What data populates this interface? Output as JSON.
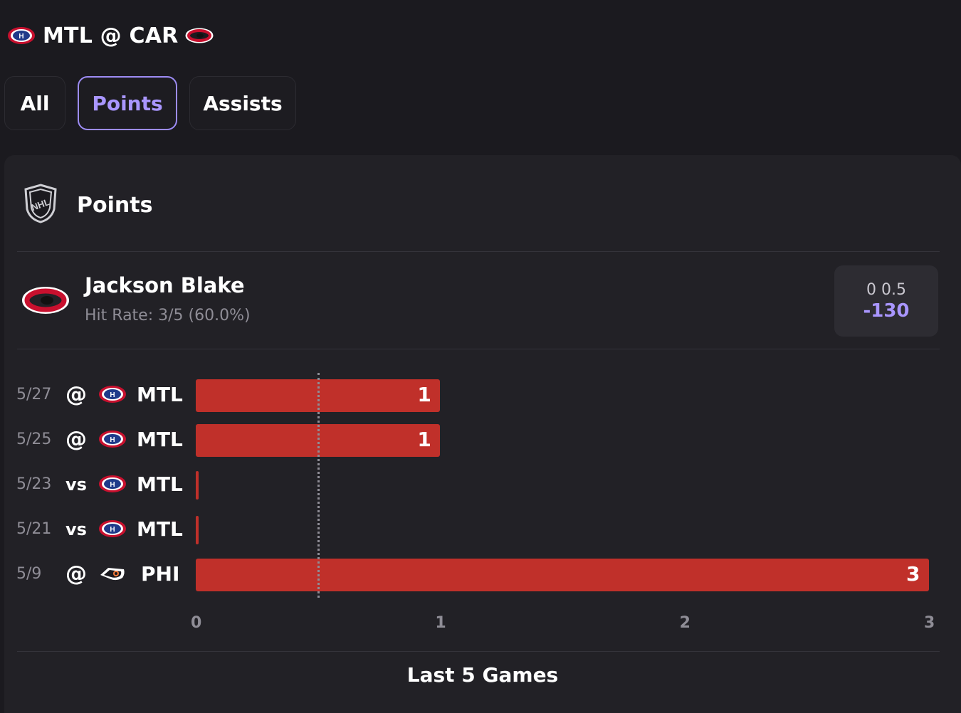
{
  "header": {
    "title": "MTL @ CAR"
  },
  "tabs": [
    {
      "label": "All",
      "active": false
    },
    {
      "label": "Points",
      "active": true
    },
    {
      "label": "Assists",
      "active": false
    }
  ],
  "section": {
    "title": "Points"
  },
  "player": {
    "name": "Jackson Blake",
    "hit_rate": "Hit Rate: 3/5 (60.0%)",
    "line": "0 0.5",
    "odds": "-130"
  },
  "colors": {
    "bar": "#c0302a",
    "accent": "#a996ff"
  },
  "chart_data": {
    "type": "bar",
    "orientation": "horizontal",
    "categories": [
      "5/27",
      "5/25",
      "5/23",
      "5/21",
      "5/9"
    ],
    "games": [
      {
        "date": "5/27",
        "location": "@",
        "opponent": "MTL",
        "value": 1
      },
      {
        "date": "5/25",
        "location": "@",
        "opponent": "MTL",
        "value": 1
      },
      {
        "date": "5/23",
        "location": "vs",
        "opponent": "MTL",
        "value": 0
      },
      {
        "date": "5/21",
        "location": "vs",
        "opponent": "MTL",
        "value": 0
      },
      {
        "date": "5/9",
        "location": "@",
        "opponent": "PHI",
        "value": 3
      }
    ],
    "values": [
      1,
      1,
      0,
      0,
      3
    ],
    "reference_line": 0.5,
    "xlim": [
      0,
      3
    ],
    "xticks": [
      "0",
      "1",
      "2",
      "3"
    ],
    "xlabel": "Last 5 Games"
  }
}
